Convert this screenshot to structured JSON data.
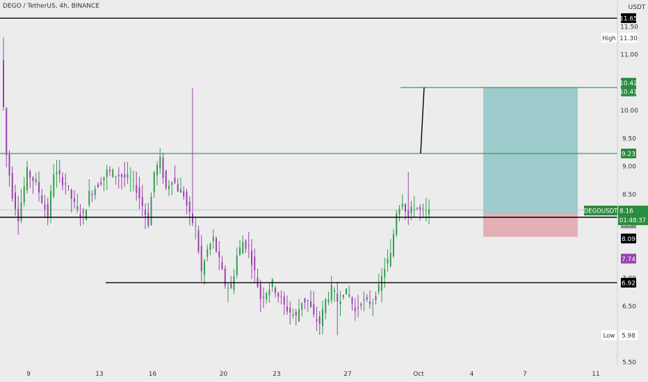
{
  "header": {
    "symbol_label": "DEGO / TetherUS, 4h, BINANCE"
  },
  "price_axis": {
    "currency": "USDT",
    "tick_labels": [
      "11.50",
      "11.00",
      "10.00",
      "9.50",
      "9.00",
      "8.50",
      "7.00",
      "6.50",
      "5.50"
    ],
    "tick_values": [
      11.5,
      11.0,
      10.0,
      9.5,
      9.0,
      8.5,
      7.0,
      6.5,
      5.5
    ]
  },
  "time_axis": {
    "labels": [
      "9",
      "13",
      "16",
      "20",
      "23",
      "27",
      "Oct",
      "4",
      "7",
      "11"
    ],
    "label_index": [
      0,
      24,
      42,
      66,
      84,
      108,
      132,
      150,
      168,
      192
    ]
  },
  "badges": {
    "high_label": "High",
    "high_value": "11.30",
    "low_label": "Low",
    "low_value": "5.98",
    "symbol_tag": "DEGOUSDT",
    "price": "8.16",
    "countdown": "01:48:37",
    "level_1165": "11.65",
    "level_1042": "10.42",
    "level_1041": "10.41",
    "level_923": "9.23",
    "level_814": "8.14",
    "level_809": "8.09",
    "level_774": "7.74",
    "level_692": "6.92"
  },
  "colors": {
    "background": "#ececec",
    "up": "#26a69a",
    "up_candle": "#2e9e4b",
    "down_candle": "#9b3fb0",
    "green_line": "#31a24c",
    "target_zone": "#8fc6c6",
    "stop_zone": "#e3a6ab",
    "black": "#000000"
  },
  "chart_data": {
    "type": "candlestick",
    "title": "DEGO / TetherUS, 4h, BINANCE",
    "timeframe": "4h",
    "y_unit": "USDT",
    "ylim": [
      5.5,
      11.75
    ],
    "x_tick_labels": [
      "9",
      "13",
      "16",
      "20",
      "23",
      "27",
      "Oct",
      "4",
      "7",
      "11"
    ],
    "price_path": [
      [
        0,
        10.9
      ],
      [
        2,
        9.2
      ],
      [
        4,
        8.5
      ],
      [
        6,
        8.1
      ],
      [
        9,
        8.9
      ],
      [
        12,
        8.7
      ],
      [
        14,
        8.4
      ],
      [
        16,
        8.1
      ],
      [
        18,
        8.9
      ],
      [
        22,
        8.7
      ],
      [
        25,
        8.3
      ],
      [
        28,
        8.1
      ],
      [
        30,
        8.5
      ],
      [
        34,
        8.75
      ],
      [
        36,
        8.9
      ],
      [
        40,
        8.85
      ],
      [
        44,
        8.75
      ],
      [
        46,
        8.6
      ],
      [
        48,
        8.3
      ],
      [
        50,
        8.0
      ],
      [
        52,
        8.9
      ],
      [
        54,
        9.1
      ],
      [
        56,
        8.6
      ],
      [
        58,
        8.8
      ],
      [
        60,
        8.6
      ],
      [
        62,
        8.5
      ],
      [
        64,
        8.1
      ],
      [
        66,
        7.9
      ],
      [
        68,
        7.1
      ],
      [
        70,
        7.5
      ],
      [
        72,
        7.7
      ],
      [
        74,
        7.3
      ],
      [
        76,
        6.9
      ],
      [
        78,
        6.8
      ],
      [
        80,
        7.4
      ],
      [
        82,
        7.65
      ],
      [
        84,
        7.55
      ],
      [
        86,
        7.1
      ],
      [
        88,
        6.65
      ],
      [
        92,
        6.9
      ],
      [
        96,
        6.5
      ],
      [
        100,
        6.3
      ],
      [
        102,
        6.6
      ],
      [
        104,
        6.6
      ],
      [
        106,
        6.3
      ],
      [
        108,
        6.2
      ],
      [
        110,
        6.6
      ],
      [
        112,
        6.8
      ],
      [
        114,
        6.6
      ],
      [
        116,
        6.75
      ],
      [
        118,
        6.7
      ],
      [
        120,
        6.4
      ],
      [
        122,
        6.6
      ],
      [
        124,
        6.55
      ],
      [
        126,
        6.6
      ],
      [
        128,
        6.8
      ],
      [
        130,
        7.2
      ],
      [
        132,
        7.4
      ],
      [
        134,
        8.2
      ],
      [
        136,
        8.4
      ],
      [
        138,
        8.1
      ],
      [
        140,
        8.3
      ],
      [
        142,
        8.2
      ],
      [
        144,
        8.16
      ]
    ],
    "horizontal_levels": [
      {
        "price": 11.65,
        "color": "black"
      },
      {
        "price": 10.41,
        "color": "green"
      },
      {
        "price": 9.23,
        "color": "green"
      },
      {
        "price": 8.09,
        "color": "black"
      },
      {
        "price": 6.92,
        "color": "black"
      }
    ],
    "long_position": {
      "entry": 8.16,
      "target": 10.41,
      "stop": 7.74
    },
    "stats": {
      "high": 11.3,
      "low": 5.98,
      "last": 8.16
    }
  }
}
